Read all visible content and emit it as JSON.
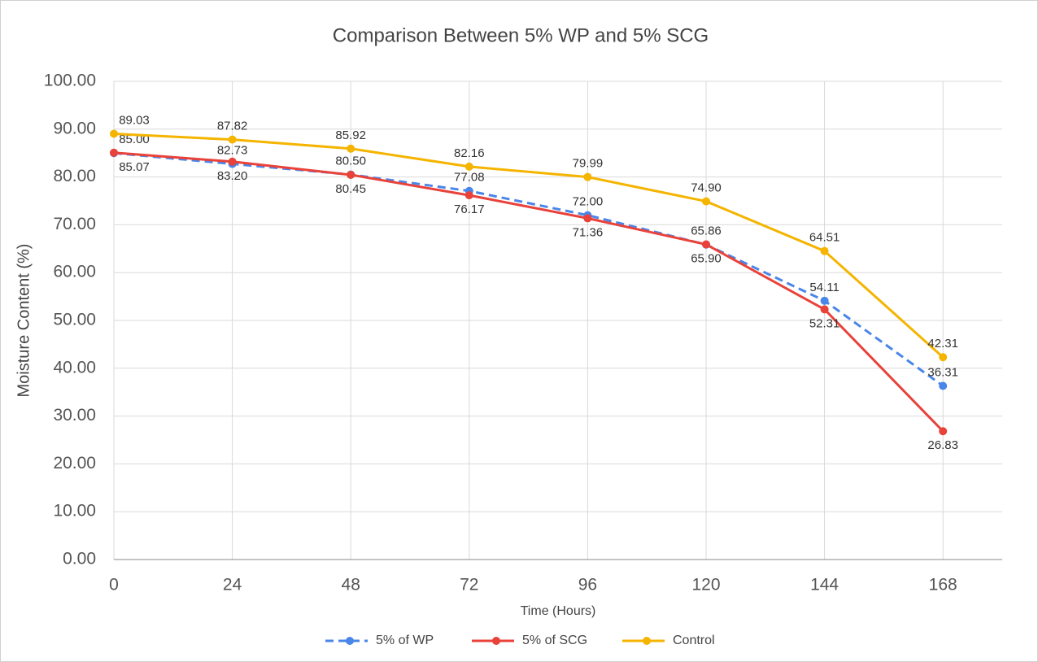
{
  "chart_data": {
    "type": "line",
    "title": "Comparison Between 5% WP and 5% SCG",
    "x_label": "Time (Hours)",
    "y_label": "Moisture Content (%)",
    "x": [
      0,
      24,
      48,
      72,
      96,
      120,
      144,
      168
    ],
    "xlim": [
      0,
      180
    ],
    "xticks": [
      0,
      24,
      48,
      72,
      96,
      120,
      144,
      168
    ],
    "ylim": [
      0,
      100
    ],
    "yticks": [
      {
        "value": 0,
        "label": "0.00"
      },
      {
        "value": 10,
        "label": "10.00"
      },
      {
        "value": 20,
        "label": "20.00"
      },
      {
        "value": 30,
        "label": "30.00"
      },
      {
        "value": 40,
        "label": "40.00"
      },
      {
        "value": 50,
        "label": "50.00"
      },
      {
        "value": 60,
        "label": "60.00"
      },
      {
        "value": 70,
        "label": "70.00"
      },
      {
        "value": 80,
        "label": "80.00"
      },
      {
        "value": 90,
        "label": "90.00"
      },
      {
        "value": 100,
        "label": "100.00"
      }
    ],
    "grid": true,
    "legend": "bottom",
    "series": [
      {
        "name": "5% of WP",
        "color": "#4a86e8",
        "dashed": true,
        "values": [
          85,
          82.73,
          80.5,
          77.08,
          72,
          65.86,
          54.11,
          36.31
        ],
        "value_labels": [
          "85.00",
          "82.73",
          "80.50",
          "77.08",
          "72.00",
          "65.86",
          "54.11",
          "36.31"
        ]
      },
      {
        "name": "5% of SCG",
        "color": "#e8423a",
        "values": [
          85.07,
          83.2,
          80.45,
          76.17,
          71.36,
          65.9,
          52.31,
          26.83
        ],
        "value_labels": [
          "85.07",
          "83.20",
          "80.45",
          "76.17",
          "71.36",
          "65.90",
          "52.31",
          "26.83"
        ]
      },
      {
        "name": "Control",
        "color": "#f4b400",
        "values": [
          89.03,
          87.82,
          85.92,
          82.16,
          79.99,
          74.9,
          64.51,
          42.31
        ],
        "value_labels": [
          "89.03",
          "87.82",
          "85.92",
          "82.16",
          "79.99",
          "74.90",
          "64.51",
          "42.31"
        ]
      }
    ]
  }
}
